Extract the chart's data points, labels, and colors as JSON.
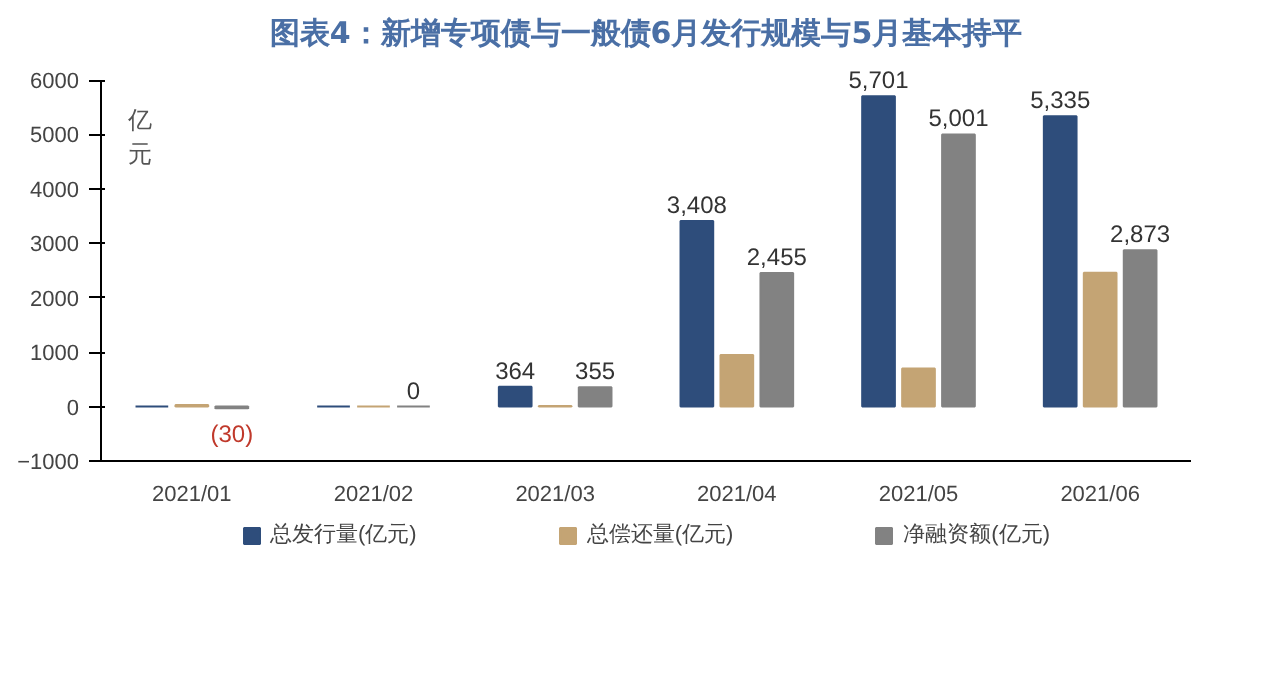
{
  "chart_data": {
    "type": "bar",
    "title": "图表4：新增专项债与一般债6月发行规模与5月基本持平",
    "ylabel": "亿元",
    "categories": [
      "2021/01",
      "2021/02",
      "2021/03",
      "2021/04",
      "2021/05",
      "2021/06"
    ],
    "series": [
      {
        "name": "总发行量(亿元)",
        "color": "#2e4d7b",
        "values": [
          0,
          0,
          364,
          3408,
          5701,
          5335
        ],
        "value_labels": [
          null,
          null,
          "364",
          "3,408",
          "5,701",
          "5,335"
        ]
      },
      {
        "name": "总偿还量(亿元)",
        "color": "#c4a474",
        "values": [
          30,
          0,
          10,
          950,
          700,
          2460
        ],
        "value_labels": [
          null,
          null,
          null,
          null,
          null,
          null
        ]
      },
      {
        "name": "净融资额(亿元)",
        "color": "#828282",
        "values": [
          -30,
          0,
          355,
          2455,
          5001,
          2873
        ],
        "value_labels": [
          "(30)",
          "0",
          "355",
          "2,455",
          "5,001",
          "2,873"
        ]
      }
    ],
    "ylim": [
      -1000,
      6000
    ],
    "yticks": [
      -1000,
      0,
      1000,
      2000,
      3000,
      4000,
      5000,
      6000
    ],
    "grid": false,
    "legend": "bottom"
  }
}
